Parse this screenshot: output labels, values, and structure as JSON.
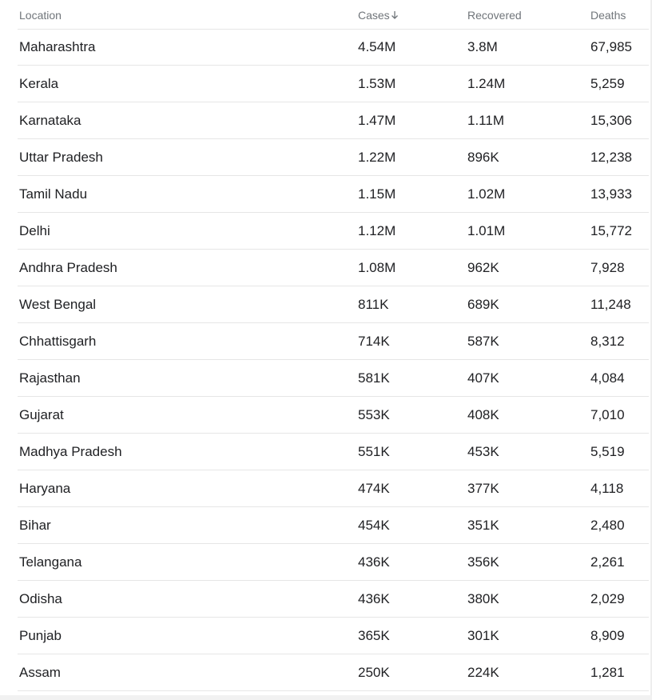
{
  "table": {
    "headers": {
      "location": "Location",
      "cases": "Cases",
      "recovered": "Recovered",
      "deaths": "Deaths"
    },
    "sort_icon": "arrow-down-icon",
    "rows": [
      {
        "location": "Maharashtra",
        "cases": "4.54M",
        "recovered": "3.8M",
        "deaths": "67,985"
      },
      {
        "location": "Kerala",
        "cases": "1.53M",
        "recovered": "1.24M",
        "deaths": "5,259"
      },
      {
        "location": "Karnataka",
        "cases": "1.47M",
        "recovered": "1.11M",
        "deaths": "15,306"
      },
      {
        "location": "Uttar Pradesh",
        "cases": "1.22M",
        "recovered": "896K",
        "deaths": "12,238"
      },
      {
        "location": "Tamil Nadu",
        "cases": "1.15M",
        "recovered": "1.02M",
        "deaths": "13,933"
      },
      {
        "location": "Delhi",
        "cases": "1.12M",
        "recovered": "1.01M",
        "deaths": "15,772"
      },
      {
        "location": "Andhra Pradesh",
        "cases": "1.08M",
        "recovered": "962K",
        "deaths": "7,928"
      },
      {
        "location": "West Bengal",
        "cases": "811K",
        "recovered": "689K",
        "deaths": "11,248"
      },
      {
        "location": "Chhattisgarh",
        "cases": "714K",
        "recovered": "587K",
        "deaths": "8,312"
      },
      {
        "location": "Rajasthan",
        "cases": "581K",
        "recovered": "407K",
        "deaths": "4,084"
      },
      {
        "location": "Gujarat",
        "cases": "553K",
        "recovered": "408K",
        "deaths": "7,010"
      },
      {
        "location": "Madhya Pradesh",
        "cases": "551K",
        "recovered": "453K",
        "deaths": "5,519"
      },
      {
        "location": "Haryana",
        "cases": "474K",
        "recovered": "377K",
        "deaths": "4,118"
      },
      {
        "location": "Bihar",
        "cases": "454K",
        "recovered": "351K",
        "deaths": "2,480"
      },
      {
        "location": "Telangana",
        "cases": "436K",
        "recovered": "356K",
        "deaths": "2,261"
      },
      {
        "location": "Odisha",
        "cases": "436K",
        "recovered": "380K",
        "deaths": "2,029"
      },
      {
        "location": "Punjab",
        "cases": "365K",
        "recovered": "301K",
        "deaths": "8,909"
      },
      {
        "location": "Assam",
        "cases": "250K",
        "recovered": "224K",
        "deaths": "1,281"
      }
    ]
  },
  "colors": {
    "header_text": "#70757a",
    "body_text": "#202124",
    "divider": "#e6e6e6"
  }
}
